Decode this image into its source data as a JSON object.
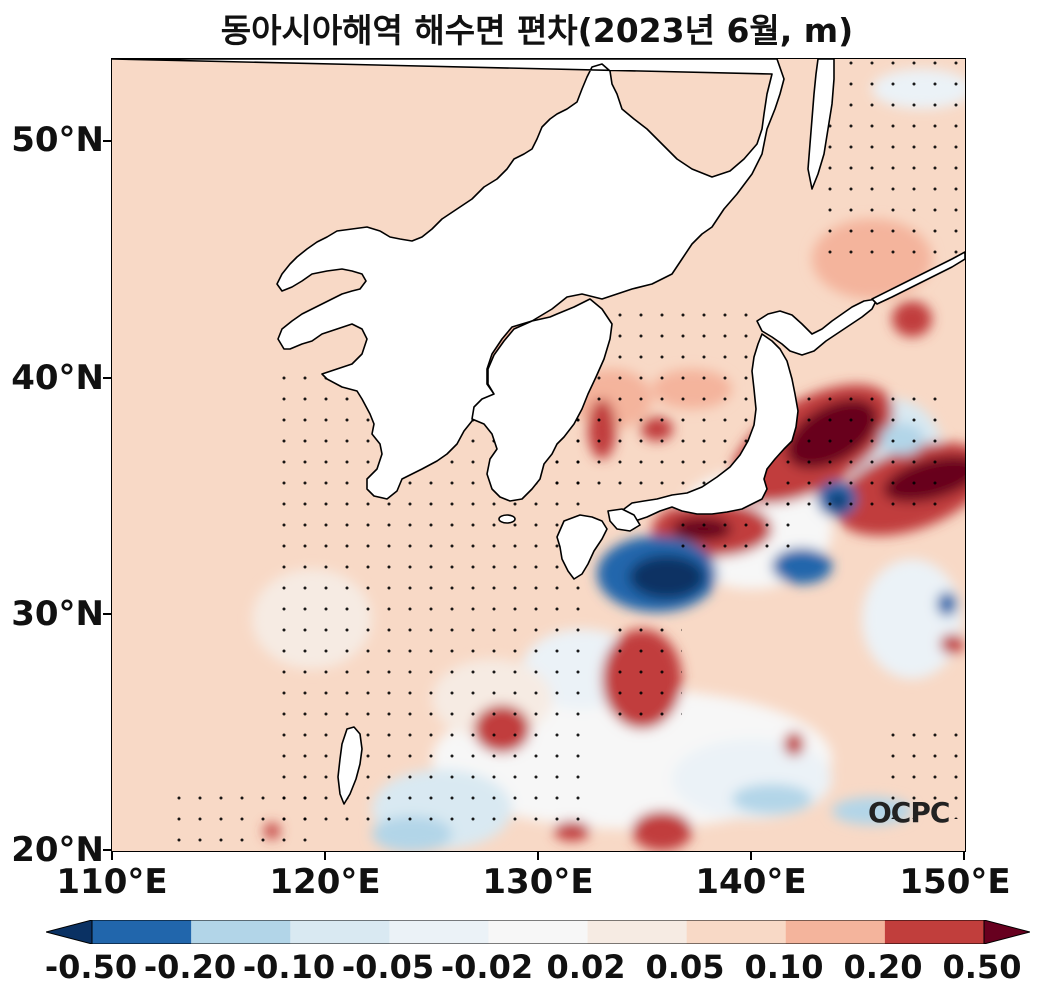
{
  "title": "동아시아해역 해수면 편차(2023년 6월, m)",
  "watermark": "OCPC",
  "axes": {
    "y_labels": [
      "50°N",
      "40°N",
      "30°N",
      "20°N"
    ],
    "x_labels": [
      "110°E",
      "120°E",
      "130°E",
      "140°E",
      "150°E"
    ],
    "lon_range": [
      110,
      150
    ],
    "lat_range": [
      20,
      53.5
    ]
  },
  "colorbar": {
    "labels": [
      "-0.50",
      "-0.20",
      "-0.10",
      "-0.05",
      "-0.02",
      "0.02",
      "0.05",
      "0.10",
      "0.20",
      "0.50"
    ],
    "colors": [
      "#2166ac",
      "#b2d5e8",
      "#d9e9f2",
      "#ebf2f7",
      "#f7f7f7",
      "#f6ebe3",
      "#f8d9c6",
      "#f4b49c",
      "#c13e3c"
    ],
    "under_color": "#0a3163",
    "over_color": "#67001f"
  }
}
